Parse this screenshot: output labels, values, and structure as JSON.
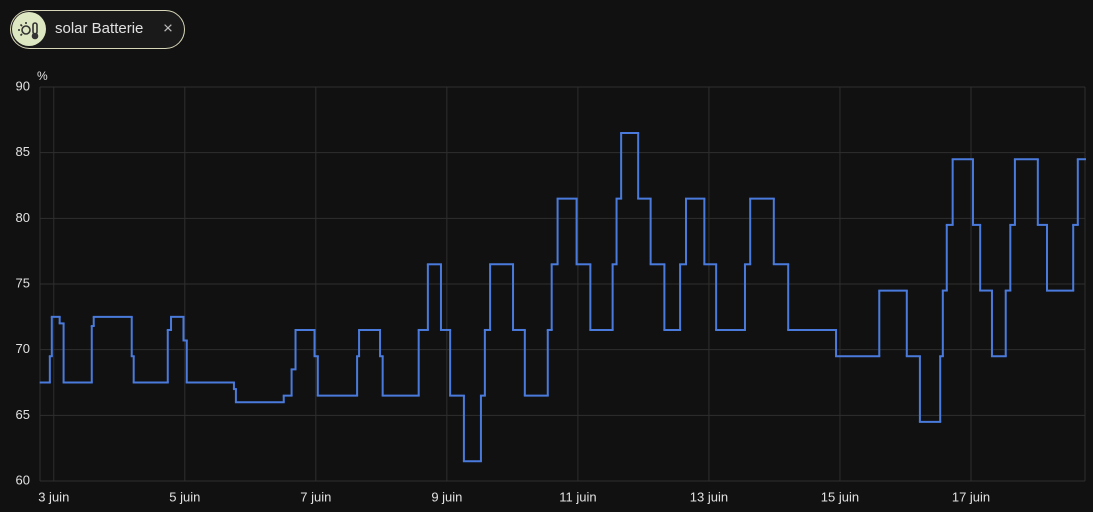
{
  "chip": {
    "label": "solar Batterie",
    "close": "×"
  },
  "chart_data": {
    "type": "step",
    "y_label": "%",
    "color": "#4a7bdc",
    "grid": true,
    "x": [
      2.8,
      2.94,
      2.97,
      3.09,
      3.15,
      3.58,
      3.61,
      4.19,
      4.22,
      4.74,
      4.79,
      4.98,
      5.03,
      5.75,
      5.78,
      6.51,
      6.63,
      6.69,
      6.98,
      7.03,
      7.63,
      7.66,
      7.98,
      8.02,
      8.57,
      8.71,
      8.91,
      9.05,
      9.26,
      9.52,
      9.58,
      9.66,
      10.01,
      10.19,
      10.54,
      10.6,
      10.69,
      10.98,
      11.19,
      11.53,
      11.59,
      11.66,
      11.92,
      12.11,
      12.32,
      12.56,
      12.65,
      12.93,
      13.11,
      13.55,
      13.63,
      13.99,
      14.21,
      14.94,
      15.6,
      16.02,
      16.22,
      16.53,
      16.57,
      16.63,
      16.72,
      17.03,
      17.14,
      17.32,
      17.53,
      17.6,
      17.67,
      18.02,
      18.16,
      18.56,
      18.63
    ],
    "values": [
      67.5,
      69.5,
      72.5,
      72,
      67.5,
      71.8,
      72.5,
      69.5,
      67.5,
      71.5,
      72.5,
      70.7,
      67.5,
      67,
      66,
      66.5,
      68.5,
      71.5,
      69.5,
      66.5,
      69.5,
      71.5,
      69.5,
      66.5,
      71.5,
      76.5,
      71.5,
      66.5,
      61.5,
      66.5,
      71.5,
      76.5,
      71.5,
      66.5,
      71.5,
      76.5,
      81.5,
      76.5,
      71.5,
      76.5,
      81.5,
      86.5,
      81.5,
      76.5,
      71.5,
      76.5,
      81.5,
      76.5,
      71.5,
      76.5,
      81.5,
      76.5,
      71.5,
      69.5,
      74.5,
      69.5,
      64.5,
      69.5,
      74.5,
      79.5,
      84.5,
      79.5,
      74.5,
      69.5,
      74.5,
      79.5,
      84.5,
      79.5,
      74.5,
      79.5,
      84.5
    ],
    "xlim": [
      2.79,
      18.74
    ],
    "ylim": [
      60,
      90
    ],
    "xticks": [
      {
        "value": 3,
        "label": "3 juin"
      },
      {
        "value": 5,
        "label": "5 juin"
      },
      {
        "value": 7,
        "label": "7 juin"
      },
      {
        "value": 9,
        "label": "9 juin"
      },
      {
        "value": 11,
        "label": "11 juin"
      },
      {
        "value": 13,
        "label": "13 juin"
      },
      {
        "value": 15,
        "label": "15 juin"
      },
      {
        "value": 17,
        "label": "17 juin"
      }
    ],
    "yticks": [
      60,
      65,
      70,
      75,
      80,
      85,
      90
    ]
  }
}
